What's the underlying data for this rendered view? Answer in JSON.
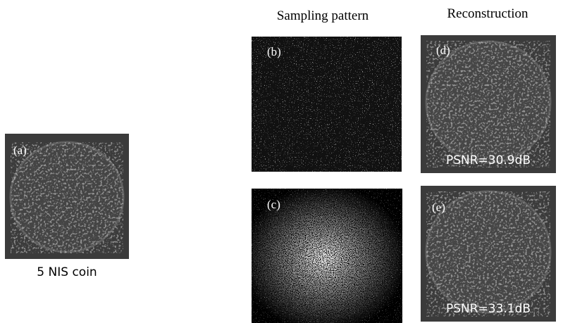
{
  "header": {
    "sampling": "Sampling pattern",
    "reconstruction": "Reconstruction"
  },
  "panels": [
    {
      "label": "(a)",
      "caption": "5 NIS coin"
    },
    {
      "label": "(b)"
    },
    {
      "label": "(c)"
    },
    {
      "label": "(d)",
      "caption": "PSNR=30.9dB"
    },
    {
      "label": "(e)",
      "caption": "PSNR=33.1dB"
    }
  ]
}
